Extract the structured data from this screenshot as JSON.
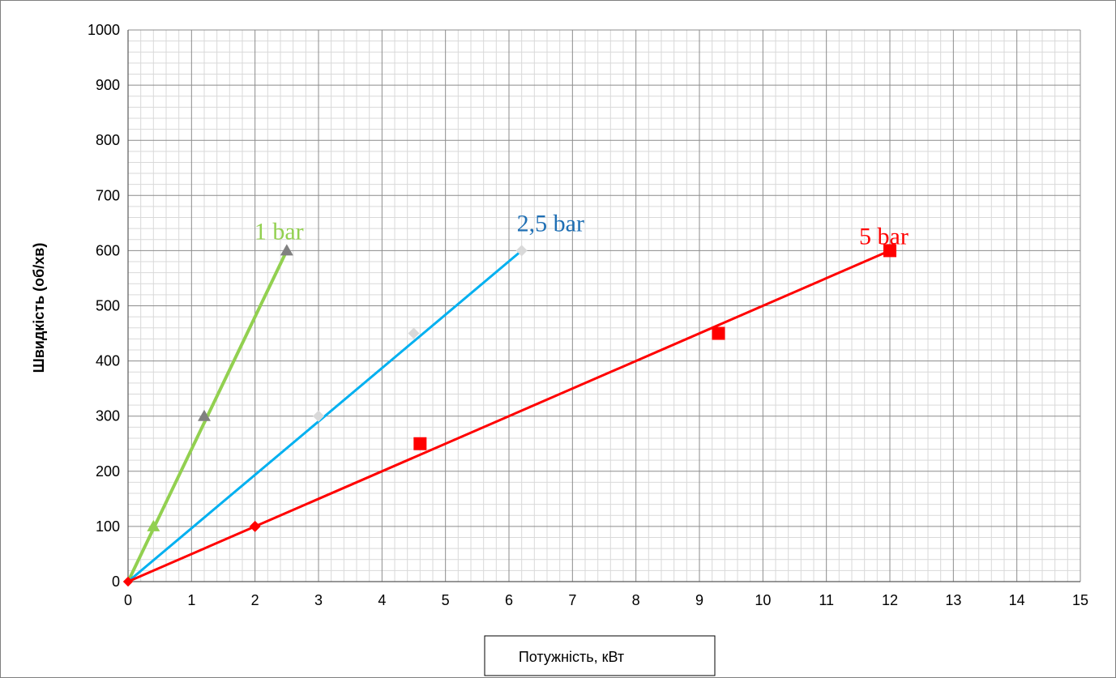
{
  "chart_data": {
    "type": "line",
    "ylabel": "Швидкість (об/хв)",
    "xlabel": "Потужність, кВт",
    "xlim": [
      0,
      15
    ],
    "ylim": [
      0,
      1000
    ],
    "x_ticks": [
      "0",
      "1",
      "2",
      "3",
      "4",
      "5",
      "6",
      "7",
      "8",
      "9",
      "10",
      "11",
      "12",
      "13",
      "14",
      "15"
    ],
    "y_ticks": [
      "0",
      "100",
      "200",
      "300",
      "400",
      "500",
      "600",
      "700",
      "800",
      "900",
      "1000"
    ],
    "grid": true,
    "series": [
      {
        "name": "1 bar",
        "color": "#92d050",
        "marker": "triangle",
        "marker_color": "#808080",
        "points": [
          [
            0,
            0
          ],
          [
            0.4,
            100
          ],
          [
            1.2,
            300
          ],
          [
            2.5,
            600
          ]
        ]
      },
      {
        "name": "2,5 bar",
        "color": "#00b0f0",
        "label_color": "#1f6fb4",
        "marker": "diamond",
        "marker_color": "#d9d9d9",
        "points": [
          [
            0,
            0
          ],
          [
            3,
            300
          ],
          [
            4.5,
            450
          ],
          [
            6.2,
            600
          ]
        ]
      },
      {
        "name": "5 bar",
        "color": "#ff0000",
        "marker": "square",
        "marker_color": "#ff0000",
        "points": [
          [
            0,
            0
          ],
          [
            2,
            100
          ],
          [
            4.6,
            250
          ],
          [
            9.3,
            450
          ],
          [
            12,
            600
          ]
        ]
      }
    ]
  }
}
